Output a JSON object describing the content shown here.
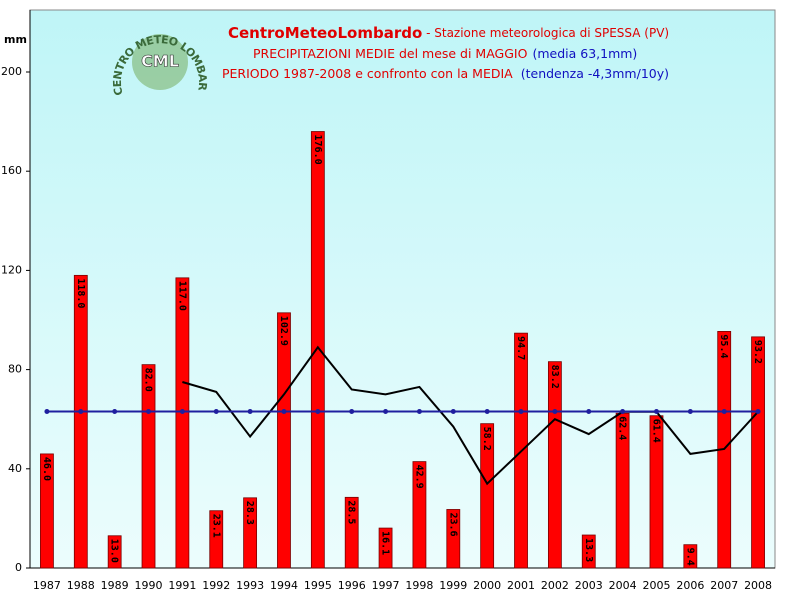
{
  "chart_data": {
    "type": "bar",
    "title": "CentroMeteoLombardo",
    "subtitle": " - Stazione meteorologica di SPESSA (PV)",
    "title_line2": "PRECIPITAZIONI MEDIE del mese di MAGGIO",
    "title_line2_note": "(media 63,1mm)",
    "title_line3": "PERIODO 1987-2008 e confronto con la MEDIA",
    "title_line3_note": "(tendenza -4,3mm/10y)",
    "y_label": "mm",
    "logo_text": "CML",
    "logo_ring": "CENTRO METEO LOMBARDO",
    "categories": [
      "1987",
      "1988",
      "1989",
      "1990",
      "1991",
      "1992",
      "1993",
      "1994",
      "1995",
      "1996",
      "1997",
      "1998",
      "1999",
      "2000",
      "2001",
      "2002",
      "2003",
      "2004",
      "2005",
      "2006",
      "2007",
      "2008"
    ],
    "series": [
      {
        "type": "bar",
        "color": "#ff0000",
        "values": [
          46.0,
          118.0,
          13.0,
          82.0,
          117.0,
          23.1,
          28.3,
          102.9,
          176.0,
          28.5,
          16.1,
          42.9,
          23.6,
          58.2,
          94.7,
          83.2,
          13.3,
          62.4,
          61.4,
          9.4,
          95.4,
          93.2
        ],
        "value_labels": [
          "46.0",
          "118.0",
          "13.0",
          "82.0",
          "117.0",
          "23.1",
          "28.3",
          "102.9",
          "176.0",
          "28.5",
          "16.1",
          "42.9",
          "23.6",
          "58.2",
          "94.7",
          "83.2",
          "13.3",
          "62.4",
          "61.4",
          "9.4",
          "95.4",
          "93.2"
        ]
      },
      {
        "type": "line",
        "color": "#000000",
        "values": [
          null,
          null,
          null,
          null,
          75,
          71,
          53,
          70,
          89,
          72,
          70,
          73,
          57,
          34,
          47,
          60,
          54,
          63,
          63,
          46,
          48,
          63
        ]
      },
      {
        "type": "line",
        "color": "#1f1f9f",
        "markers": true,
        "values": [
          63.1,
          63.1,
          63.1,
          63.1,
          63.1,
          63.1,
          63.1,
          63.1,
          63.1,
          63.1,
          63.1,
          63.1,
          63.1,
          63.1,
          63.1,
          63.1,
          63.1,
          63.1,
          63.1,
          63.1,
          63.1,
          63.1
        ]
      }
    ],
    "ylim": [
      0,
      225
    ],
    "yticks": [
      0,
      40,
      80,
      120,
      160,
      200
    ]
  }
}
